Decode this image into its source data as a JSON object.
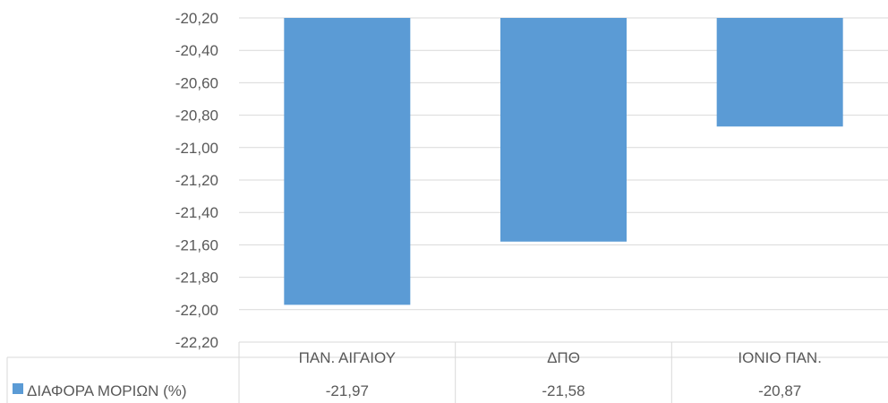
{
  "chart_data": {
    "type": "bar",
    "categories": [
      "ΠΑΝ. ΑΙΓΑΙΟΥ",
      "ΔΠΘ",
      "ΙΟΝΙΟ ΠΑΝ."
    ],
    "series": [
      {
        "name": "ΔΙΑΦΟΡΑ ΜΟΡΙΩΝ (%)",
        "values": [
          -21.97,
          -21.58,
          -20.87
        ],
        "value_labels": [
          "-21,97",
          "-21,58",
          "-20,87"
        ],
        "color": "#5b9bd5"
      }
    ],
    "ylim": [
      -22.2,
      -20.2
    ],
    "y_ticks": [
      "-20,20",
      "-20,40",
      "-20,60",
      "-20,80",
      "-21,00",
      "-21,20",
      "-21,40",
      "-21,60",
      "-21,80",
      "-22,00",
      "-22,20"
    ],
    "grid": true,
    "legend": "data-table-left",
    "title": "",
    "xlabel": "",
    "ylabel": ""
  }
}
